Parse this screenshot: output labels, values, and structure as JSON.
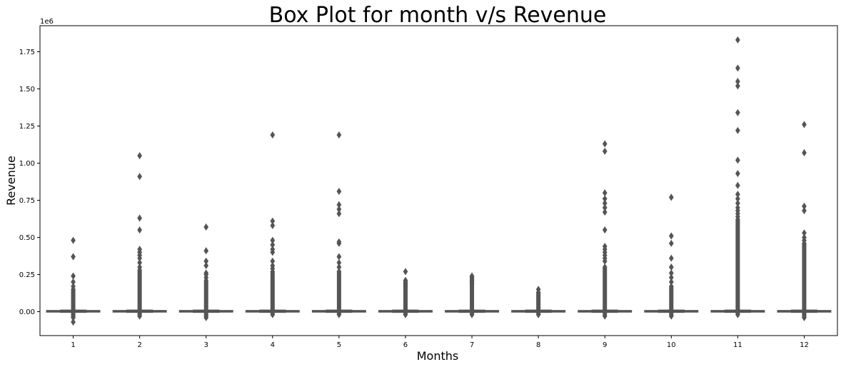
{
  "chart_data": {
    "type": "box",
    "title": "Box Plot for month v/s Revenue",
    "xlabel": "Months",
    "ylabel": "Revenue",
    "y_offset_label": "1e6",
    "categories": [
      "1",
      "2",
      "3",
      "4",
      "5",
      "6",
      "7",
      "8",
      "9",
      "10",
      "11",
      "12"
    ],
    "ylim": [
      -0.16,
      1.9
    ],
    "y_ticks": [
      {
        "value": 0.0,
        "label": "0.00"
      },
      {
        "value": 0.25,
        "label": "0.25"
      },
      {
        "value": 0.5,
        "label": "0.50"
      },
      {
        "value": 0.75,
        "label": "0.75"
      },
      {
        "value": 1.0,
        "label": "1.00"
      },
      {
        "value": 1.25,
        "label": "1.25"
      },
      {
        "value": 1.5,
        "label": "1.50"
      },
      {
        "value": 1.75,
        "label": "1.75"
      }
    ],
    "grid": false,
    "box_color": "#555555",
    "boxes": [
      {
        "category": "1",
        "median": 0.0,
        "q1": 0.0,
        "q3": 0.005,
        "whisker_low": -0.004,
        "whisker_high": 0.01,
        "dense_outlier_range": [
          -0.04,
          0.15
        ],
        "outliers": [
          0.48,
          0.37,
          0.24,
          0.2,
          0.17,
          -0.07
        ]
      },
      {
        "category": "2",
        "median": 0.0,
        "q1": 0.0,
        "q3": 0.005,
        "whisker_low": -0.004,
        "whisker_high": 0.01,
        "dense_outlier_range": [
          -0.03,
          0.28
        ],
        "outliers": [
          1.05,
          0.91,
          0.63,
          0.55,
          0.42,
          0.4,
          0.38,
          0.36,
          0.33,
          0.3
        ]
      },
      {
        "category": "3",
        "median": 0.0,
        "q1": 0.0,
        "q3": 0.005,
        "whisker_low": -0.004,
        "whisker_high": 0.01,
        "dense_outlier_range": [
          -0.04,
          0.21
        ],
        "outliers": [
          0.57,
          0.41,
          0.34,
          0.31,
          0.26,
          0.25,
          0.23
        ]
      },
      {
        "category": "4",
        "median": 0.0,
        "q1": 0.0,
        "q3": 0.005,
        "whisker_low": -0.004,
        "whisker_high": 0.01,
        "dense_outlier_range": [
          -0.02,
          0.27
        ],
        "outliers": [
          1.19,
          0.61,
          0.58,
          0.48,
          0.45,
          0.42,
          0.4,
          0.34,
          0.31,
          0.29
        ]
      },
      {
        "category": "5",
        "median": 0.0,
        "q1": 0.0,
        "q3": 0.005,
        "whisker_low": -0.004,
        "whisker_high": 0.01,
        "dense_outlier_range": [
          -0.02,
          0.27
        ],
        "outliers": [
          1.19,
          0.81,
          0.72,
          0.69,
          0.66,
          0.47,
          0.46,
          0.37,
          0.33,
          0.3
        ]
      },
      {
        "category": "6",
        "median": 0.0,
        "q1": 0.0,
        "q3": 0.005,
        "whisker_low": -0.004,
        "whisker_high": 0.01,
        "dense_outlier_range": [
          -0.02,
          0.21
        ],
        "outliers": [
          0.27,
          0.21,
          0.19,
          0.17
        ]
      },
      {
        "category": "7",
        "median": 0.0,
        "q1": 0.0,
        "q3": 0.005,
        "whisker_low": -0.004,
        "whisker_high": 0.01,
        "dense_outlier_range": [
          -0.02,
          0.24
        ],
        "outliers": [
          0.23,
          0.21,
          0.19
        ]
      },
      {
        "category": "8",
        "median": 0.0,
        "q1": 0.0,
        "q3": 0.005,
        "whisker_low": -0.004,
        "whisker_high": 0.01,
        "dense_outlier_range": [
          -0.02,
          0.12
        ],
        "outliers": [
          0.15,
          0.13
        ]
      },
      {
        "category": "9",
        "median": 0.0,
        "q1": 0.0,
        "q3": 0.005,
        "whisker_low": -0.004,
        "whisker_high": 0.01,
        "dense_outlier_range": [
          -0.03,
          0.3
        ],
        "outliers": [
          1.13,
          1.08,
          0.8,
          0.76,
          0.73,
          0.7,
          0.67,
          0.55,
          0.44,
          0.42,
          0.4,
          0.38,
          0.36,
          0.34
        ]
      },
      {
        "category": "10",
        "median": 0.0,
        "q1": 0.0,
        "q3": 0.005,
        "whisker_low": -0.004,
        "whisker_high": 0.01,
        "dense_outlier_range": [
          -0.03,
          0.17
        ],
        "outliers": [
          0.77,
          0.51,
          0.46,
          0.36,
          0.3,
          0.26,
          0.23,
          0.2
        ]
      },
      {
        "category": "11",
        "median": 0.0,
        "q1": 0.0,
        "q3": 0.005,
        "whisker_low": -0.004,
        "whisker_high": 0.01,
        "dense_outlier_range": [
          -0.02,
          0.62
        ],
        "outliers": [
          1.83,
          1.64,
          1.55,
          1.52,
          1.34,
          1.22,
          1.02,
          0.93,
          0.85,
          0.79,
          0.76,
          0.73,
          0.7,
          0.68,
          0.66,
          0.64
        ]
      },
      {
        "category": "12",
        "median": 0.0,
        "q1": 0.0,
        "q3": 0.005,
        "whisker_low": -0.004,
        "whisker_high": 0.01,
        "dense_outlier_range": [
          -0.04,
          0.45
        ],
        "outliers": [
          1.26,
          1.07,
          0.71,
          0.68,
          0.53,
          0.5,
          0.48,
          0.46
        ]
      }
    ]
  }
}
